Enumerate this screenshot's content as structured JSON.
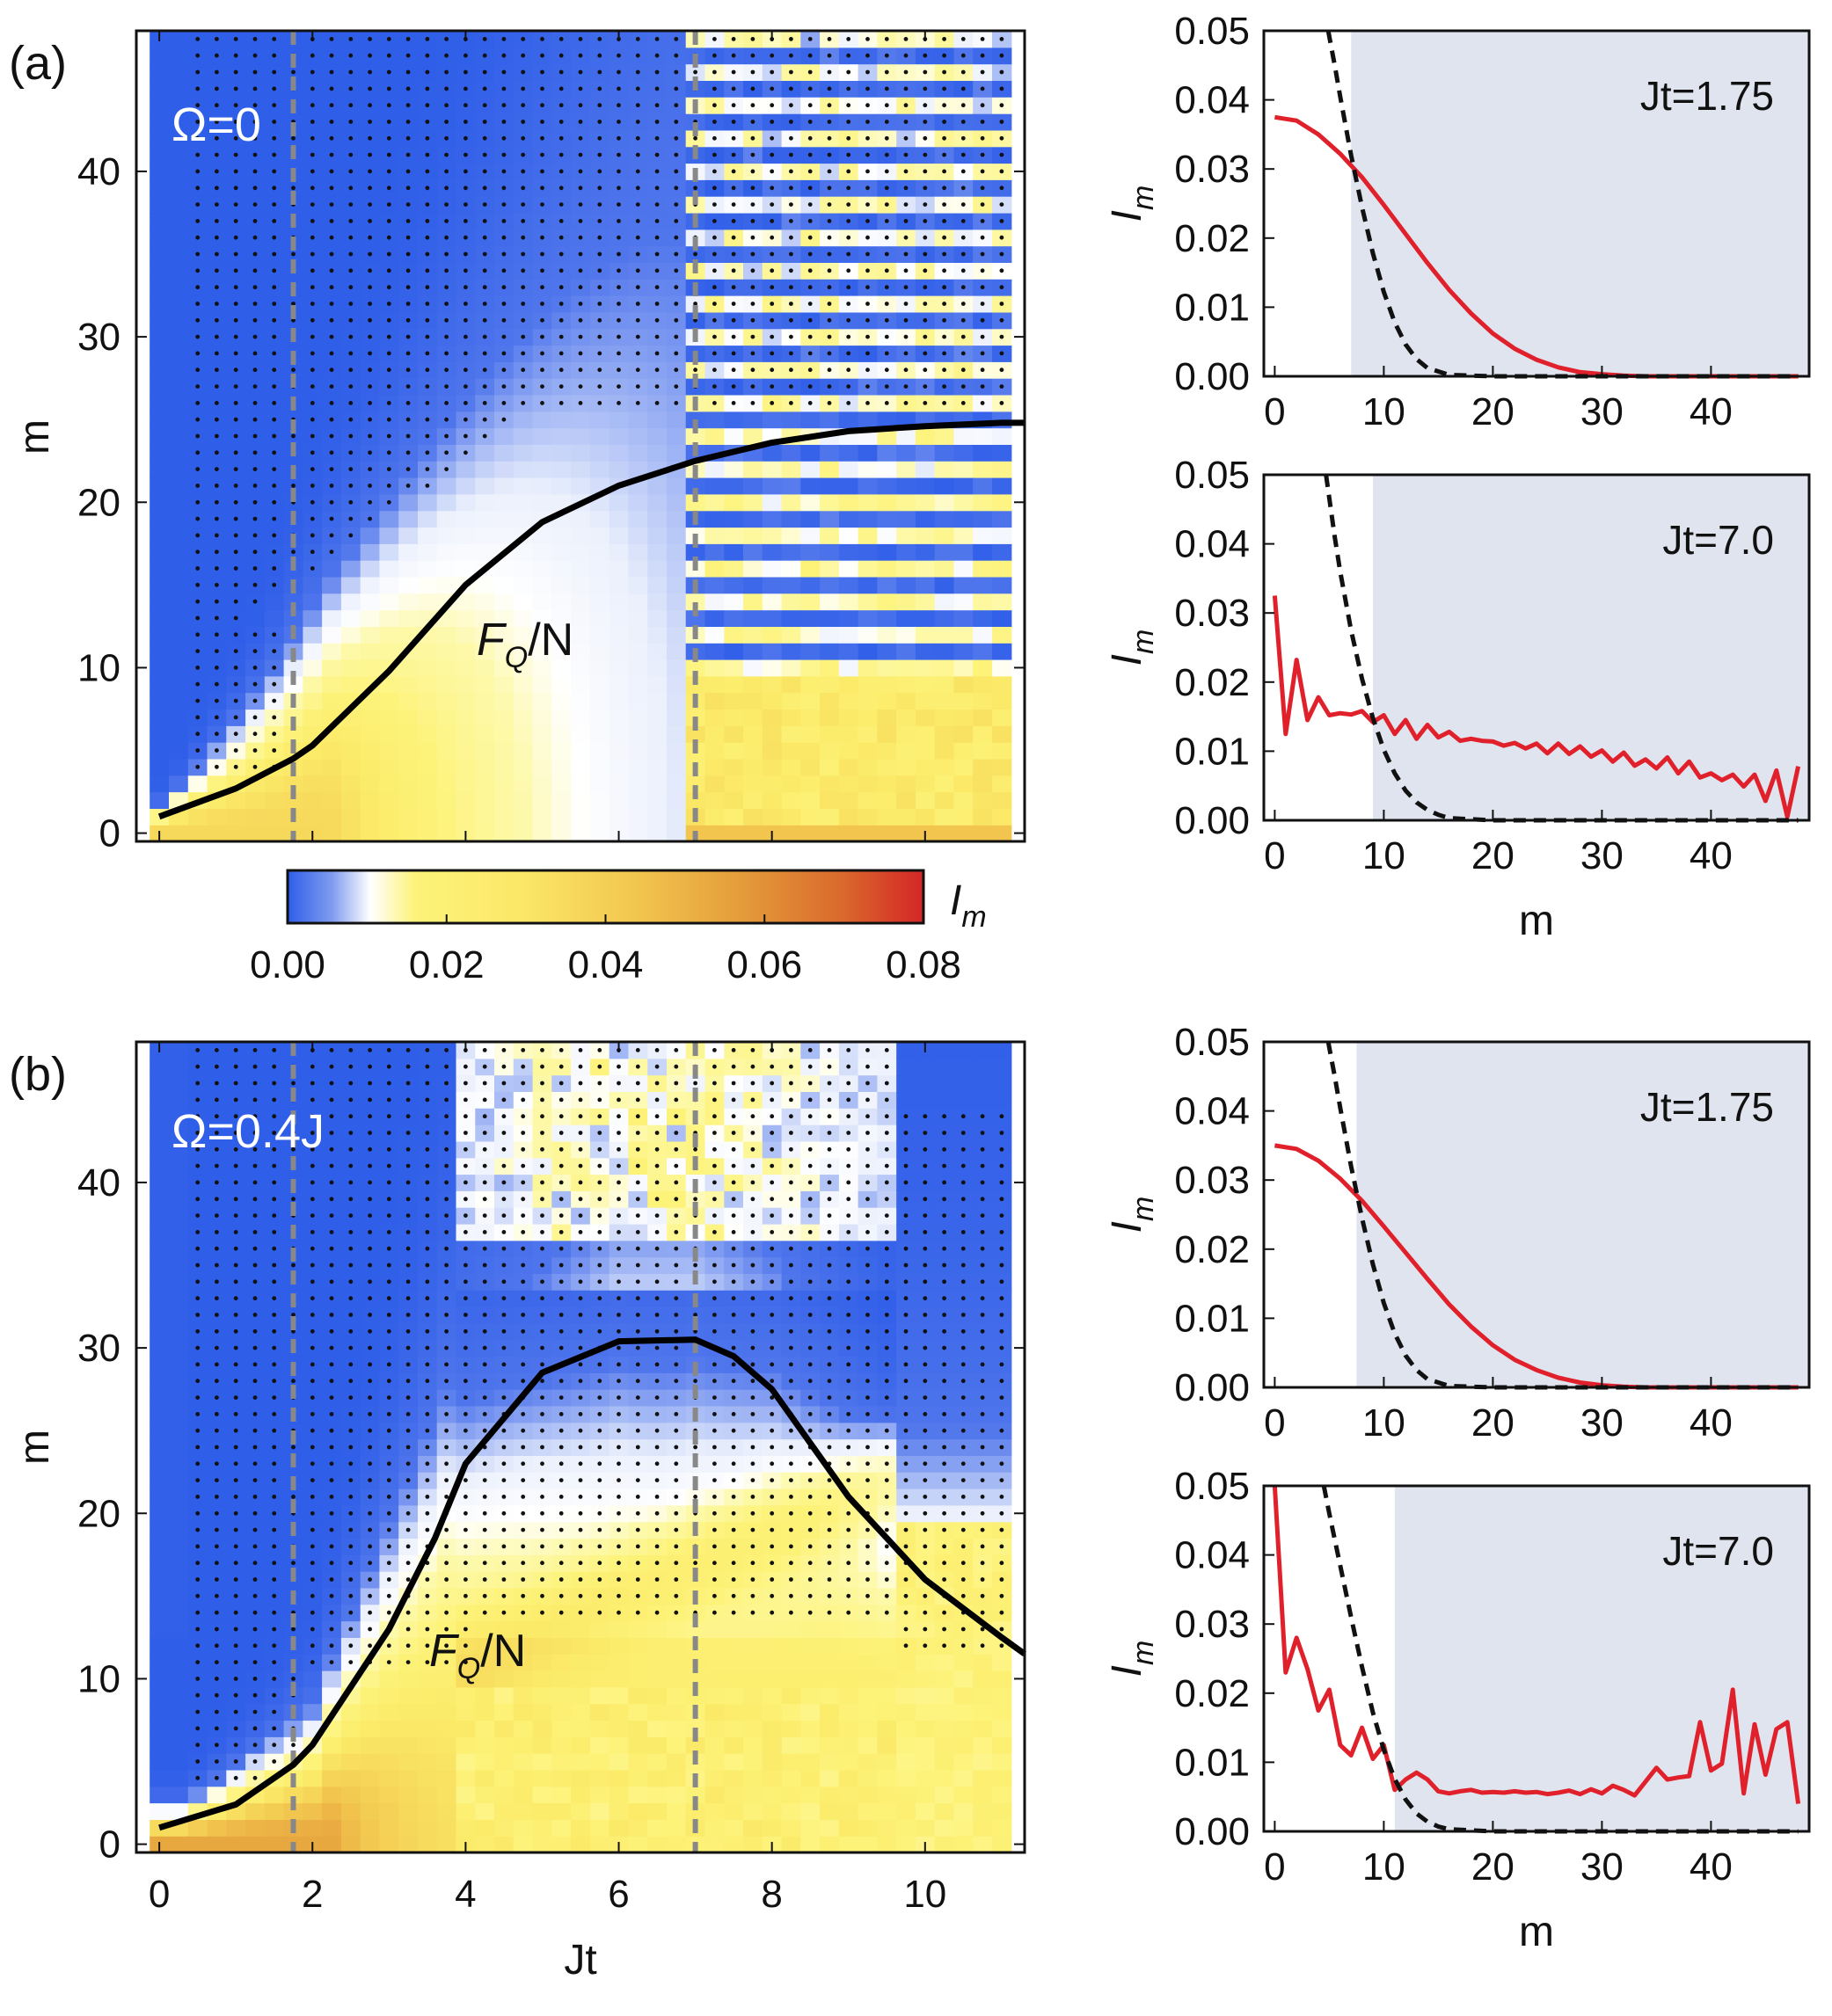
{
  "chart_data": [
    {
      "type": "heatmap",
      "id": "a",
      "panel_label": "(a)",
      "annotation": "Ω=0",
      "curve_label": "FQ/N",
      "xlabel": "",
      "ylabel": "m",
      "xlim": [
        -0.3,
        11.3
      ],
      "ylim": [
        -0.5,
        48.5
      ],
      "y_ticks": [
        "0",
        "10",
        "20",
        "30",
        "40"
      ],
      "dashed_lines_x": [
        1.75,
        7.0
      ],
      "fq_curve": {
        "x": [
          0,
          1,
          1.75,
          2,
          3,
          4,
          5,
          6,
          7,
          8,
          9,
          10,
          11,
          11.3
        ],
        "y": [
          1,
          2.7,
          4.5,
          5.3,
          9.8,
          15,
          18.8,
          21,
          22.5,
          23.6,
          24.3,
          24.6,
          24.8,
          24.8
        ]
      }
    },
    {
      "type": "heatmap",
      "id": "b",
      "panel_label": "(b)",
      "annotation": "Ω=0.4J",
      "curve_label": "FQ/N",
      "xlabel": "Jt",
      "ylabel": "m",
      "xlim": [
        -0.3,
        11.3
      ],
      "ylim": [
        -0.5,
        48.5
      ],
      "x_ticks": [
        "0",
        "2",
        "4",
        "6",
        "8",
        "10"
      ],
      "y_ticks": [
        "0",
        "10",
        "20",
        "30",
        "40"
      ],
      "dashed_lines_x": [
        1.75,
        7.0
      ],
      "fq_curve": {
        "x": [
          0,
          1,
          1.75,
          2,
          3,
          3.6,
          4,
          5,
          6,
          7,
          7.5,
          8,
          9,
          10,
          11,
          11.3
        ],
        "y": [
          1,
          2.4,
          4.8,
          6,
          13,
          18.5,
          23,
          28.5,
          30.4,
          30.5,
          29.5,
          27.5,
          21,
          16,
          12.5,
          11.5
        ]
      }
    },
    {
      "type": "line",
      "id": "a-top",
      "annotation": "Jt=1.75",
      "xlabel": "",
      "ylabel": "Im",
      "xlim": [
        -1,
        49
      ],
      "ylim": [
        0,
        0.05
      ],
      "x_ticks": [
        "0",
        "10",
        "20",
        "30",
        "40"
      ],
      "y_ticks": [
        "0.00",
        "0.01",
        "0.02",
        "0.03",
        "0.04",
        "0.05"
      ],
      "shade_start": 7,
      "series": [
        {
          "name": "Im",
          "style": "red-solid",
          "x": [
            0,
            2,
            4,
            6,
            8,
            10,
            12,
            14,
            16,
            18,
            20,
            22,
            24,
            26,
            28,
            30,
            32,
            34,
            36,
            40,
            44,
            48
          ],
          "y": [
            0.0375,
            0.037,
            0.035,
            0.0322,
            0.0288,
            0.0248,
            0.0206,
            0.0164,
            0.0125,
            0.0091,
            0.0062,
            0.004,
            0.0024,
            0.0013,
            0.0006,
            0.0003,
            0.0001,
            0,
            0,
            0,
            0,
            0
          ]
        },
        {
          "name": "gaussian",
          "style": "black-dashed",
          "x": [
            4.9,
            5.5,
            6,
            7,
            8,
            9,
            10,
            11,
            12,
            13,
            14,
            16,
            20,
            48
          ],
          "y": [
            0.05,
            0.045,
            0.0405,
            0.032,
            0.0245,
            0.0178,
            0.0122,
            0.0078,
            0.0046,
            0.0025,
            0.0012,
            0.0002,
            0,
            0
          ]
        }
      ]
    },
    {
      "type": "line",
      "id": "a-bottom",
      "annotation": "Jt=7.0",
      "xlabel": "m",
      "ylabel": "Im",
      "xlim": [
        -1,
        49
      ],
      "ylim": [
        0,
        0.05
      ],
      "x_ticks": [
        "0",
        "10",
        "20",
        "30",
        "40"
      ],
      "y_ticks": [
        "0.00",
        "0.01",
        "0.02",
        "0.03",
        "0.04",
        "0.05"
      ],
      "shade_start": 9,
      "series": [
        {
          "name": "Im",
          "style": "red-solid",
          "x": [
            0,
            1,
            2,
            3,
            4,
            5,
            6,
            7,
            8,
            9,
            10,
            11,
            12,
            13,
            14,
            15,
            16,
            17,
            18,
            19,
            20,
            21,
            22,
            23,
            24,
            25,
            26,
            27,
            28,
            29,
            30,
            31,
            32,
            33,
            34,
            35,
            36,
            37,
            38,
            39,
            40,
            41,
            42,
            43,
            44,
            45,
            46,
            47,
            48
          ],
          "y": [
            0.0325,
            0.0125,
            0.0232,
            0.0145,
            0.0178,
            0.0152,
            0.0155,
            0.0153,
            0.0158,
            0.0142,
            0.0152,
            0.0125,
            0.0145,
            0.0118,
            0.0138,
            0.012,
            0.0128,
            0.0115,
            0.0118,
            0.0115,
            0.0114,
            0.0108,
            0.0112,
            0.0104,
            0.0111,
            0.0097,
            0.0111,
            0.0096,
            0.0107,
            0.0092,
            0.0101,
            0.0085,
            0.0098,
            0.0079,
            0.0088,
            0.0075,
            0.0091,
            0.0068,
            0.0085,
            0.0062,
            0.0068,
            0.0058,
            0.0066,
            0.0049,
            0.0066,
            0.0028,
            0.0072,
            0.0005,
            0.0078
          ]
        },
        {
          "name": "gaussian",
          "style": "black-dashed",
          "x": [
            4.7,
            5.5,
            6,
            7,
            8,
            9,
            10,
            11,
            12,
            13,
            14,
            15,
            16,
            20,
            48
          ],
          "y": [
            0.05,
            0.041,
            0.036,
            0.0275,
            0.0205,
            0.0148,
            0.0102,
            0.0068,
            0.0043,
            0.0026,
            0.0015,
            0.0008,
            0.0003,
            0,
            0
          ]
        }
      ]
    },
    {
      "type": "line",
      "id": "b-top",
      "annotation": "Jt=1.75",
      "xlabel": "",
      "ylabel": "Im",
      "xlim": [
        -1,
        49
      ],
      "ylim": [
        0,
        0.05
      ],
      "x_ticks": [
        "0",
        "10",
        "20",
        "30",
        "40"
      ],
      "y_ticks": [
        "0.00",
        "0.01",
        "0.02",
        "0.03",
        "0.04",
        "0.05"
      ],
      "shade_start": 7.5,
      "series": [
        {
          "name": "Im",
          "style": "red-solid",
          "x": [
            0,
            2,
            4,
            6,
            8,
            10,
            12,
            14,
            16,
            18,
            20,
            22,
            24,
            26,
            28,
            30,
            32,
            34,
            36,
            40,
            44,
            48
          ],
          "y": [
            0.035,
            0.0345,
            0.0328,
            0.0302,
            0.027,
            0.0233,
            0.0195,
            0.0157,
            0.012,
            0.0088,
            0.0061,
            0.004,
            0.0025,
            0.0014,
            0.0007,
            0.0003,
            0.0001,
            0,
            0,
            0,
            0,
            0
          ]
        },
        {
          "name": "gaussian",
          "style": "black-dashed",
          "x": [
            4.9,
            5.5,
            6,
            7,
            8,
            9,
            10,
            11,
            12,
            13,
            14,
            16,
            20,
            48
          ],
          "y": [
            0.05,
            0.045,
            0.0405,
            0.032,
            0.0245,
            0.0178,
            0.0122,
            0.0078,
            0.0046,
            0.0025,
            0.0012,
            0.0002,
            0,
            0
          ]
        }
      ]
    },
    {
      "type": "line",
      "id": "b-bottom",
      "annotation": "Jt=7.0",
      "xlabel": "m",
      "ylabel": "Im",
      "xlim": [
        -1,
        49
      ],
      "ylim": [
        0,
        0.05
      ],
      "x_ticks": [
        "0",
        "10",
        "20",
        "30",
        "40"
      ],
      "y_ticks": [
        "0.00",
        "0.01",
        "0.02",
        "0.03",
        "0.04",
        "0.05"
      ],
      "shade_start": 11,
      "series": [
        {
          "name": "Im",
          "style": "red-solid",
          "x": [
            0,
            1,
            2,
            3,
            4,
            5,
            6,
            7,
            8,
            9,
            10,
            11,
            12,
            13,
            14,
            15,
            16,
            17,
            18,
            19,
            20,
            21,
            22,
            23,
            24,
            25,
            26,
            27,
            28,
            29,
            30,
            31,
            32,
            33,
            34,
            35,
            36,
            37,
            38,
            39,
            40,
            41,
            42,
            43,
            44,
            45,
            46,
            47,
            48
          ],
          "y": [
            0.05,
            0.023,
            0.028,
            0.0235,
            0.0175,
            0.0205,
            0.0125,
            0.011,
            0.015,
            0.0105,
            0.0125,
            0.006,
            0.0075,
            0.0085,
            0.0075,
            0.0058,
            0.0055,
            0.0058,
            0.006,
            0.0056,
            0.0057,
            0.0056,
            0.0058,
            0.0056,
            0.0057,
            0.0054,
            0.0056,
            0.0059,
            0.0054,
            0.0061,
            0.0055,
            0.0066,
            0.006,
            0.0052,
            0.0072,
            0.0092,
            0.0075,
            0.0078,
            0.008,
            0.0158,
            0.0088,
            0.0098,
            0.0205,
            0.0055,
            0.0155,
            0.0082,
            0.0148,
            0.0158,
            0.004
          ]
        },
        {
          "name": "gaussian",
          "style": "black-dashed",
          "x": [
            4.5,
            5,
            6,
            7,
            8,
            9,
            10,
            11,
            12,
            13,
            14,
            15,
            16,
            20,
            48
          ],
          "y": [
            0.05,
            0.046,
            0.0385,
            0.031,
            0.0238,
            0.0172,
            0.0118,
            0.0076,
            0.0046,
            0.0026,
            0.0014,
            0.0007,
            0.0003,
            0,
            0
          ]
        }
      ]
    },
    {
      "type": "colorbar",
      "id": "colorbar",
      "label": "Im",
      "range": [
        0,
        0.08
      ],
      "ticks": [
        "0.00",
        "0.02",
        "0.04",
        "0.06",
        "0.08"
      ]
    }
  ]
}
